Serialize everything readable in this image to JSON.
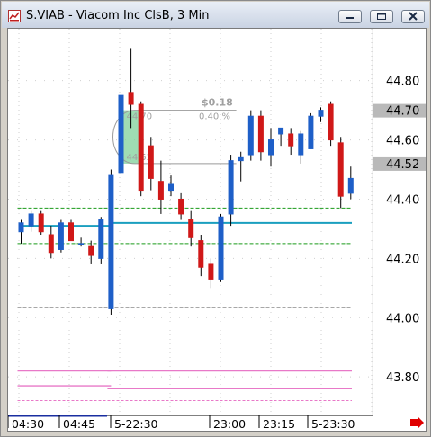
{
  "window": {
    "title": "S.VIAB - Viacom Inc ClsB, 3 Min"
  },
  "icons": {
    "app": "chart-app-icon",
    "minimize": "minimize-icon",
    "maximize": "maximize-icon",
    "close": "close-icon",
    "scroll": "scroll-right-arrow-icon"
  },
  "colors": {
    "up_candle": "#1e5fc8",
    "down_candle": "#d01818",
    "moving_average": "#1a9fbf",
    "band": "#1a9a1a",
    "gray_line": "#8a8a8a",
    "pink_line": "#e879c8",
    "highlight_box": "#7fd09a",
    "arrow": "#e00000"
  },
  "chart_data": {
    "type": "candlestick",
    "symbol": "S.VIAB",
    "interval": "3 Min",
    "ylim": [
      43.67,
      44.975
    ],
    "y_ticks": [
      "44.80",
      "44.60",
      "44.40",
      "44.20",
      "44.00",
      "43.80"
    ],
    "price_labels": [
      "44.70",
      "44.52"
    ],
    "x_ticks": [
      "04:30",
      "04:45",
      "5-22:30",
      "23:00",
      "23:15",
      "5-23:30"
    ],
    "candles": [
      {
        "o": 44.29,
        "h": 44.33,
        "l": 44.25,
        "c": 44.32
      },
      {
        "o": 44.31,
        "h": 44.36,
        "l": 44.29,
        "c": 44.35
      },
      {
        "o": 44.35,
        "h": 44.36,
        "l": 44.28,
        "c": 44.29
      },
      {
        "o": 44.28,
        "h": 44.31,
        "l": 44.2,
        "c": 44.22
      },
      {
        "o": 44.23,
        "h": 44.33,
        "l": 44.22,
        "c": 44.32
      },
      {
        "o": 44.32,
        "h": 44.33,
        "l": 44.26,
        "c": 44.26
      },
      {
        "o": 44.25,
        "h": 44.27,
        "l": 44.24,
        "c": 44.25
      },
      {
        "o": 44.24,
        "h": 44.26,
        "l": 44.18,
        "c": 44.21
      },
      {
        "o": 44.2,
        "h": 44.34,
        "l": 44.18,
        "c": 44.33
      },
      {
        "o": 44.03,
        "h": 44.5,
        "l": 44.01,
        "c": 44.48
      },
      {
        "o": 44.49,
        "h": 44.8,
        "l": 44.46,
        "c": 44.75
      },
      {
        "o": 44.76,
        "h": 44.91,
        "l": 44.64,
        "c": 44.72
      },
      {
        "o": 44.72,
        "h": 44.73,
        "l": 44.41,
        "c": 44.43
      },
      {
        "o": 44.58,
        "h": 44.61,
        "l": 44.43,
        "c": 44.47
      },
      {
        "o": 44.46,
        "h": 44.53,
        "l": 44.35,
        "c": 44.4
      },
      {
        "o": 44.43,
        "h": 44.48,
        "l": 44.41,
        "c": 44.45
      },
      {
        "o": 44.4,
        "h": 44.42,
        "l": 44.33,
        "c": 44.35
      },
      {
        "o": 44.33,
        "h": 44.36,
        "l": 44.24,
        "c": 44.27
      },
      {
        "o": 44.26,
        "h": 44.28,
        "l": 44.14,
        "c": 44.17
      },
      {
        "o": 44.18,
        "h": 44.2,
        "l": 44.1,
        "c": 44.13
      },
      {
        "o": 44.13,
        "h": 44.35,
        "l": 44.12,
        "c": 44.34
      },
      {
        "o": 44.35,
        "h": 44.55,
        "l": 44.31,
        "c": 44.53
      },
      {
        "o": 44.53,
        "h": 44.56,
        "l": 44.46,
        "c": 44.54
      },
      {
        "o": 44.55,
        "h": 44.7,
        "l": 44.53,
        "c": 44.68
      },
      {
        "o": 44.68,
        "h": 44.7,
        "l": 44.53,
        "c": 44.56
      },
      {
        "o": 44.55,
        "h": 44.64,
        "l": 44.51,
        "c": 44.6
      },
      {
        "o": 44.62,
        "h": 44.64,
        "l": 44.58,
        "c": 44.64
      },
      {
        "o": 44.62,
        "h": 44.64,
        "l": 44.55,
        "c": 44.58
      },
      {
        "o": 44.55,
        "h": 44.63,
        "l": 44.52,
        "c": 44.62
      },
      {
        "o": 44.57,
        "h": 44.69,
        "l": 44.57,
        "c": 44.68
      },
      {
        "o": 44.68,
        "h": 44.71,
        "l": 44.66,
        "c": 44.7
      },
      {
        "o": 44.72,
        "h": 44.73,
        "l": 44.58,
        "c": 44.6
      },
      {
        "o": 44.59,
        "h": 44.61,
        "l": 44.37,
        "c": 44.41
      },
      {
        "o": 44.42,
        "h": 44.51,
        "l": 44.4,
        "c": 44.47
      }
    ],
    "moving_average": [
      {
        "from": 0,
        "to": 9,
        "value": 44.31
      },
      {
        "from": 9,
        "to": 33,
        "value": 44.32
      }
    ],
    "bands": [
      44.37,
      44.25
    ],
    "gray_line": 44.035,
    "pink_lines": [
      {
        "from": 0,
        "to": 9,
        "value": 43.82
      },
      {
        "from": 9,
        "to": 33,
        "value": 43.82
      },
      {
        "from": 0,
        "to": 9,
        "value": 43.77
      },
      {
        "from": 9,
        "to": 33,
        "value": 43.76
      },
      {
        "from": 0,
        "to": 33,
        "value": 43.72
      }
    ],
    "measure": {
      "from_index": 10,
      "to_index": 21,
      "top": 44.7,
      "bottom": 44.52,
      "top_label": "44.70",
      "bottom_label": "44.52",
      "change_label": "$0.18",
      "percent_label": "0.40 %"
    }
  }
}
